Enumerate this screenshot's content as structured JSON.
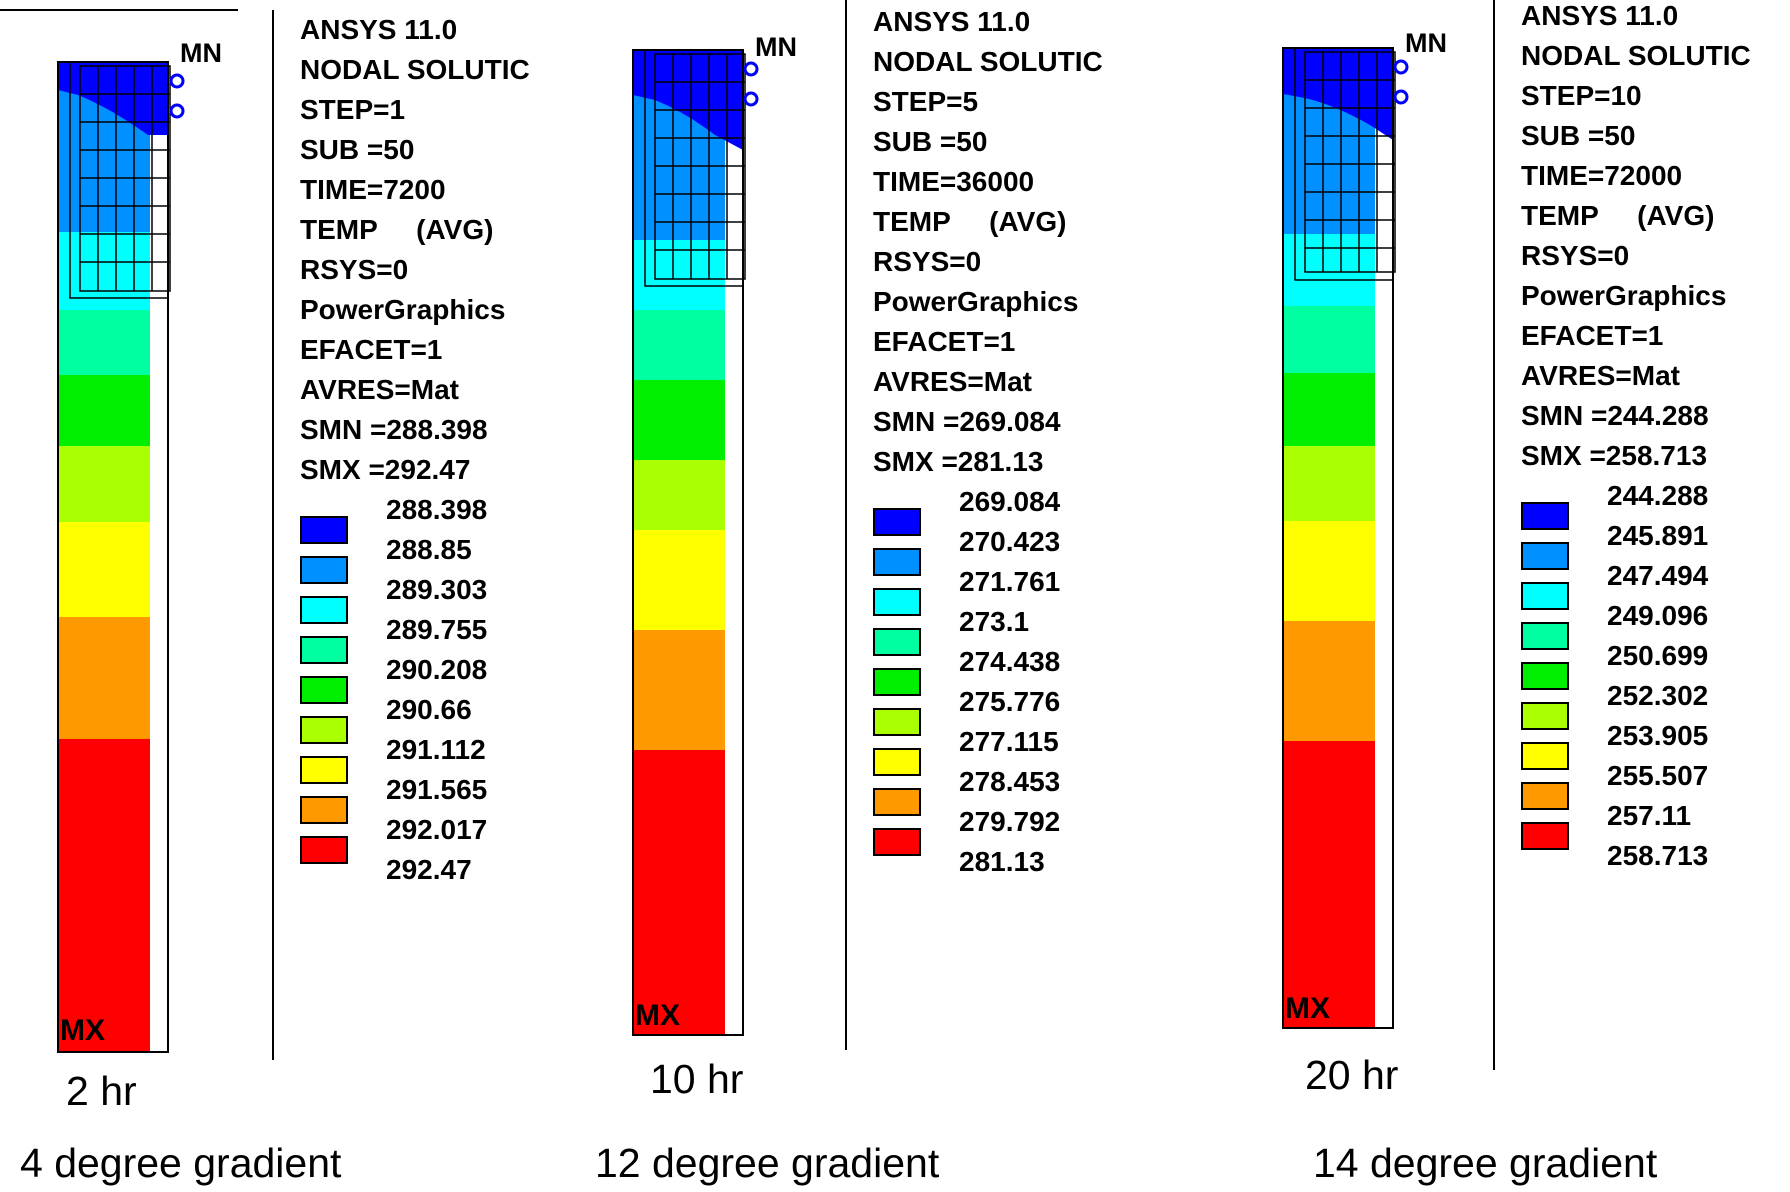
{
  "colors": [
    "#0000ff",
    "#0090ff",
    "#00ffff",
    "#00ffa0",
    "#00ee00",
    "#aaff00",
    "#ffff00",
    "#ff9900",
    "#ff0000"
  ],
  "panels": [
    {
      "header": [
        "ANSYS 11.0",
        "NODAL SOLUTIC",
        "STEP=1",
        "SUB =50",
        "TIME=7200",
        "TEMP     (AVG)",
        "RSYS=0",
        "PowerGraphics",
        "EFACET=1",
        "AVRES=Mat",
        "SMN =288.398",
        "SMX =292.47"
      ],
      "scale": [
        "288.398",
        "288.85",
        "289.303",
        "289.755",
        "290.208",
        "290.66",
        "291.112",
        "291.565",
        "292.017",
        "292.47"
      ],
      "time_label": "2 hr",
      "gradient_label": "4 degree gradient",
      "mn_label": "MN",
      "mx_label": "MX"
    },
    {
      "header": [
        "ANSYS 11.0",
        "NODAL SOLUTIC",
        "STEP=5",
        "SUB =50",
        "TIME=36000",
        "TEMP     (AVG)",
        "RSYS=0",
        "PowerGraphics",
        "EFACET=1",
        "AVRES=Mat",
        "SMN =269.084",
        "SMX =281.13"
      ],
      "scale": [
        "269.084",
        "270.423",
        "271.761",
        "273.1",
        "274.438",
        "275.776",
        "277.115",
        "278.453",
        "279.792",
        "281.13"
      ],
      "time_label": "10 hr",
      "gradient_label": "12 degree gradient",
      "mn_label": "MN",
      "mx_label": "MX"
    },
    {
      "header": [
        "ANSYS 11.0",
        "NODAL SOLUTIC",
        "STEP=10",
        "SUB =50",
        "TIME=72000",
        "TEMP     (AVG)",
        "RSYS=0",
        "PowerGraphics",
        "EFACET=1",
        "AVRES=Mat",
        "SMN =244.288",
        "SMX =258.713"
      ],
      "scale": [
        "244.288",
        "245.891",
        "247.494",
        "249.096",
        "250.699",
        "252.302",
        "253.905",
        "255.507",
        "257.11",
        "258.713"
      ],
      "time_label": "20 hr",
      "gradient_label": "14 degree gradient",
      "mn_label": "MN",
      "mx_label": "MX"
    }
  ]
}
